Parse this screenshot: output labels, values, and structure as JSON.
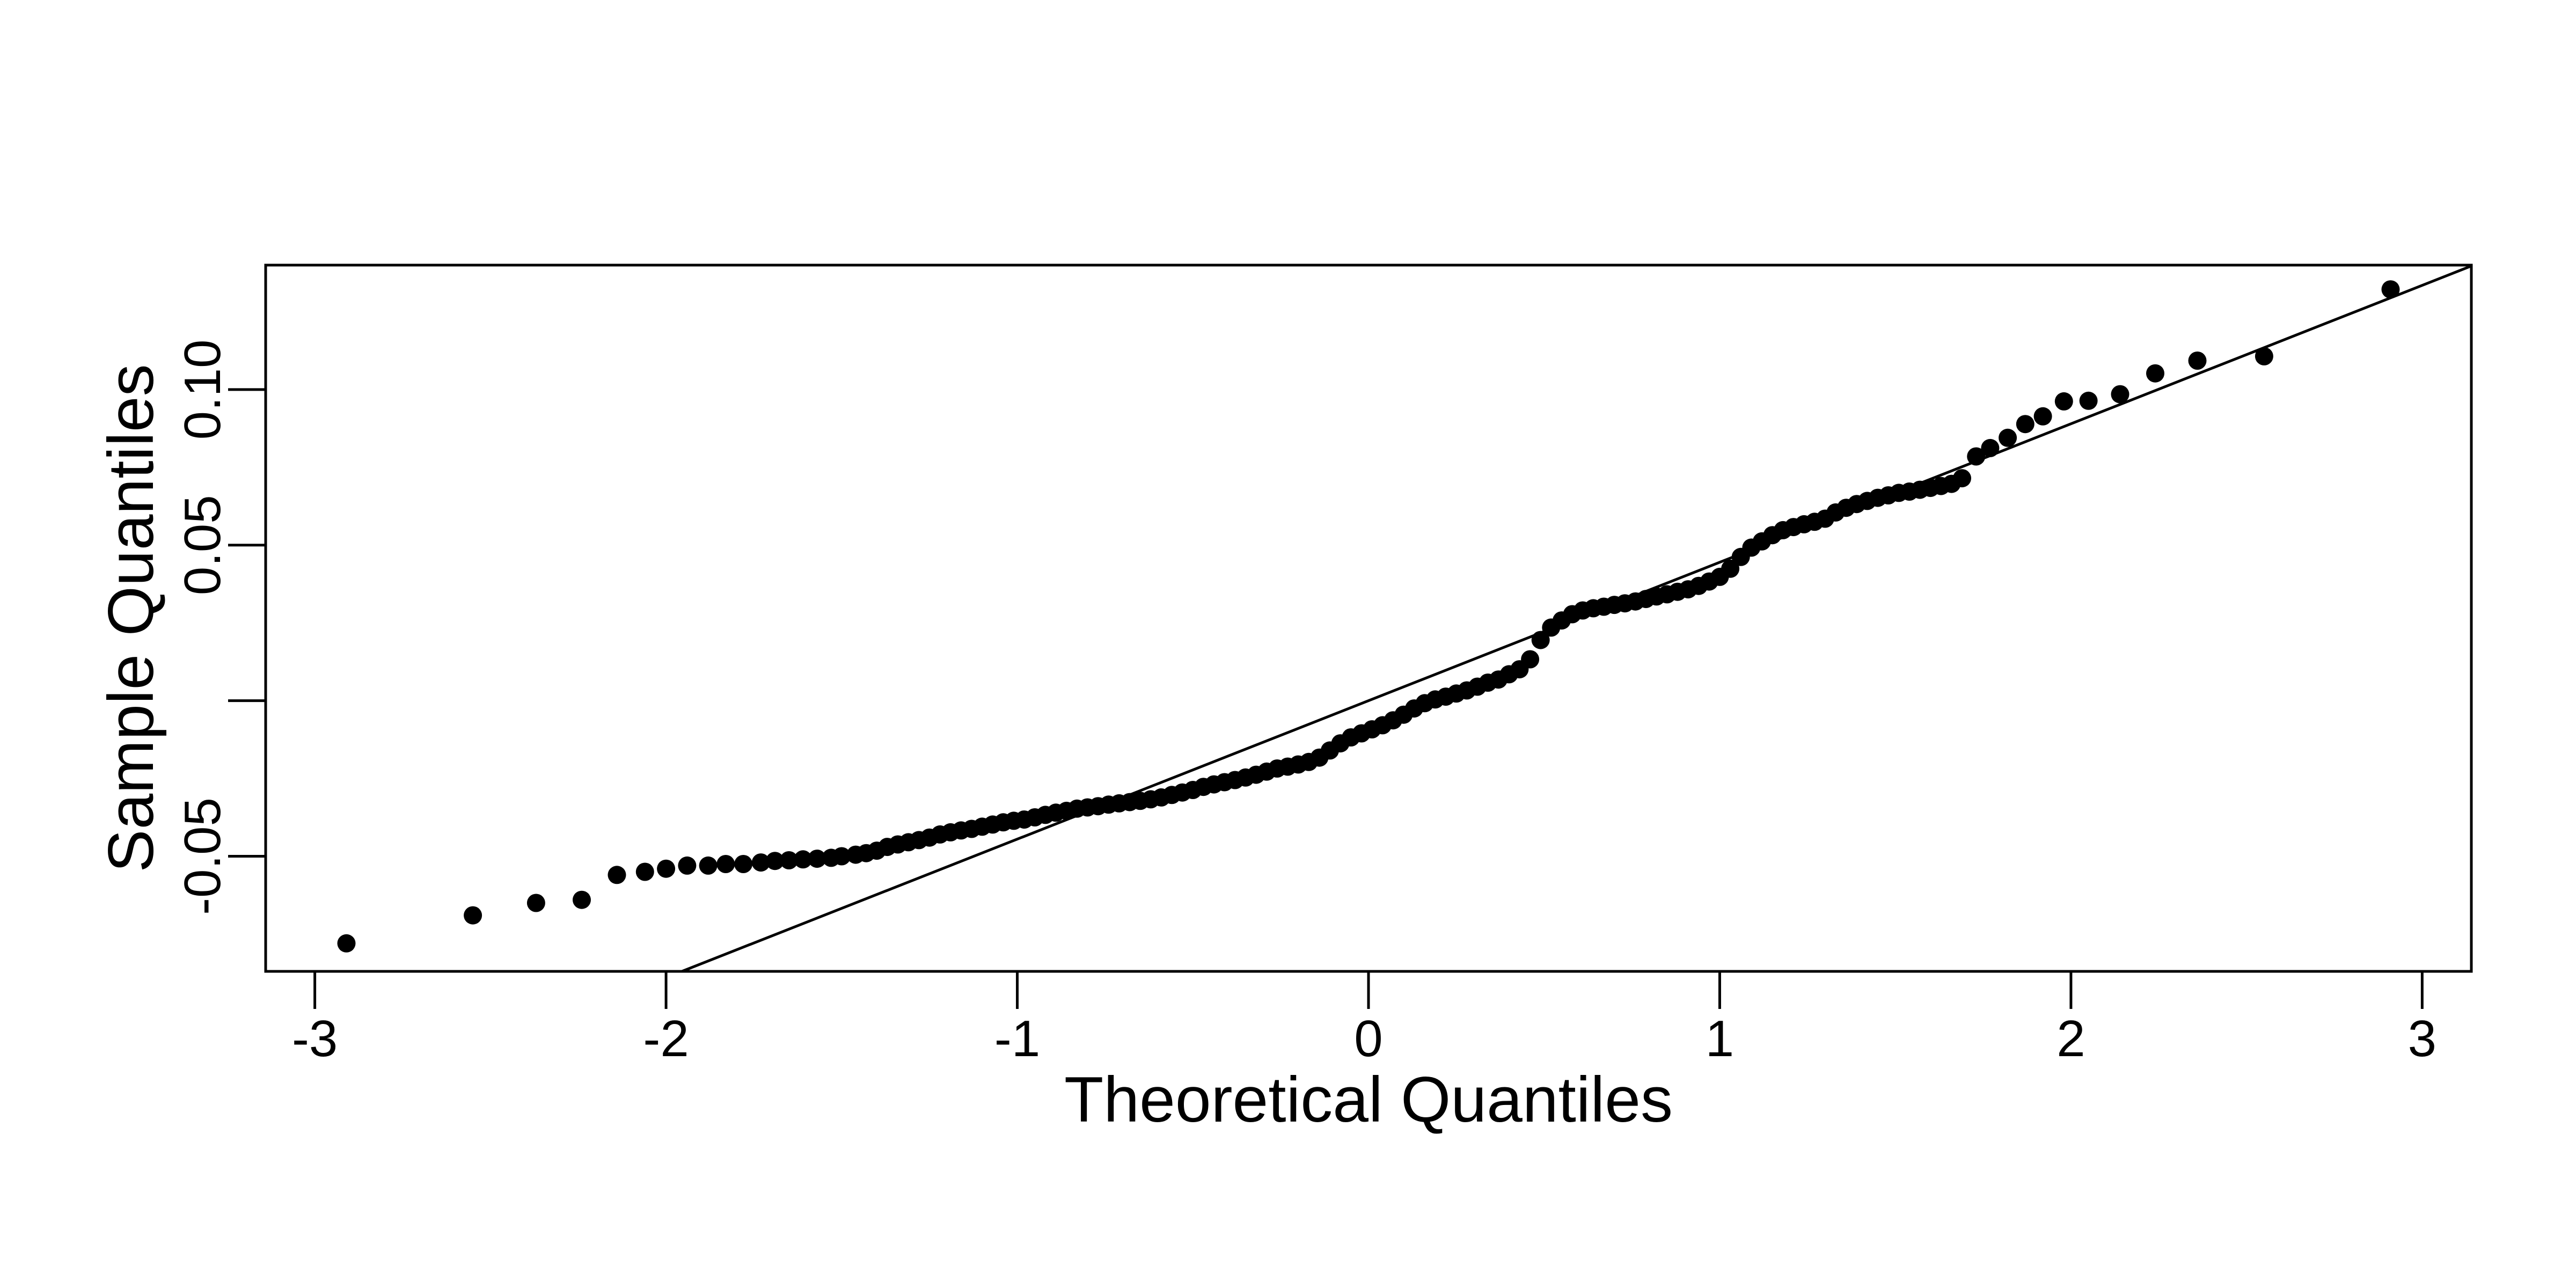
{
  "chart_data": {
    "type": "scatter",
    "title": "",
    "xlabel": "Theoretical Quantiles",
    "ylabel": "Sample Quantiles",
    "xlim": [
      -3.14,
      3.14
    ],
    "ylim": [
      -0.087,
      0.14
    ],
    "xticks": [
      -3,
      -2,
      -1,
      0,
      1,
      2,
      3
    ],
    "xtick_labels": [
      "-3",
      "-2",
      "-1",
      "0",
      "1",
      "2",
      "3"
    ],
    "yticks": [
      -0.05,
      0,
      0.05,
      0.1
    ],
    "ytick_labels": [
      "-0.05",
      "",
      "0.05",
      "0.10"
    ],
    "grid": false,
    "marker_color": "#000000",
    "reference_line": {
      "intercept": 0.0,
      "slope": 0.0445
    },
    "points": [
      [
        -2.91,
        -0.078
      ],
      [
        -2.55,
        -0.069
      ],
      [
        -2.37,
        -0.065
      ],
      [
        -2.24,
        -0.064
      ],
      [
        -2.14,
        -0.056
      ],
      [
        -2.06,
        -0.055
      ],
      [
        -2.0,
        -0.054
      ],
      [
        -1.94,
        -0.053
      ],
      [
        -1.88,
        -0.053
      ],
      [
        -1.83,
        -0.0525
      ],
      [
        -1.78,
        -0.0525
      ],
      [
        -1.73,
        -0.052
      ],
      [
        -1.69,
        -0.0515
      ],
      [
        -1.65,
        -0.0513
      ],
      [
        -1.61,
        -0.051
      ],
      [
        -1.57,
        -0.0508
      ],
      [
        -1.53,
        -0.0505
      ],
      [
        -1.5,
        -0.05
      ],
      [
        -1.46,
        -0.0495
      ],
      [
        -1.43,
        -0.049
      ],
      [
        -1.4,
        -0.0482
      ],
      [
        -1.37,
        -0.047
      ],
      [
        -1.34,
        -0.0462
      ],
      [
        -1.31,
        -0.0455
      ],
      [
        -1.28,
        -0.0448
      ],
      [
        -1.25,
        -0.044
      ],
      [
        -1.22,
        -0.043
      ],
      [
        -1.19,
        -0.0423
      ],
      [
        -1.16,
        -0.0417
      ],
      [
        -1.13,
        -0.0412
      ],
      [
        -1.1,
        -0.0405
      ],
      [
        -1.07,
        -0.0398
      ],
      [
        -1.04,
        -0.0391
      ],
      [
        -1.01,
        -0.0386
      ],
      [
        -0.98,
        -0.0382
      ],
      [
        -0.95,
        -0.0375
      ],
      [
        -0.92,
        -0.0367
      ],
      [
        -0.89,
        -0.036
      ],
      [
        -0.86,
        -0.0354
      ],
      [
        -0.83,
        -0.0347
      ],
      [
        -0.8,
        -0.0343
      ],
      [
        -0.77,
        -0.0339
      ],
      [
        -0.74,
        -0.0334
      ],
      [
        -0.71,
        -0.033
      ],
      [
        -0.68,
        -0.0326
      ],
      [
        -0.65,
        -0.0322
      ],
      [
        -0.62,
        -0.0317
      ],
      [
        -0.59,
        -0.0311
      ],
      [
        -0.56,
        -0.0303
      ],
      [
        -0.53,
        -0.0295
      ],
      [
        -0.5,
        -0.0287
      ],
      [
        -0.47,
        -0.0277
      ],
      [
        -0.44,
        -0.0269
      ],
      [
        -0.41,
        -0.0262
      ],
      [
        -0.38,
        -0.0255
      ],
      [
        -0.35,
        -0.0247
      ],
      [
        -0.32,
        -0.0238
      ],
      [
        -0.29,
        -0.0228
      ],
      [
        -0.26,
        -0.0218
      ],
      [
        -0.23,
        -0.0212
      ],
      [
        -0.2,
        -0.0205
      ],
      [
        -0.17,
        -0.0197
      ],
      [
        -0.14,
        -0.0183
      ],
      [
        -0.11,
        -0.016
      ],
      [
        -0.08,
        -0.0137
      ],
      [
        -0.05,
        -0.0118
      ],
      [
        -0.02,
        -0.0105
      ],
      [
        0.01,
        -0.0092
      ],
      [
        0.04,
        -0.0079
      ],
      [
        0.07,
        -0.0063
      ],
      [
        0.1,
        -0.0045
      ],
      [
        0.13,
        -0.0025
      ],
      [
        0.16,
        -0.0008
      ],
      [
        0.19,
        0.0004
      ],
      [
        0.22,
        0.0013
      ],
      [
        0.25,
        0.0023
      ],
      [
        0.28,
        0.0033
      ],
      [
        0.31,
        0.0045
      ],
      [
        0.34,
        0.0058
      ],
      [
        0.37,
        0.0068
      ],
      [
        0.4,
        0.0085
      ],
      [
        0.43,
        0.0101
      ],
      [
        0.46,
        0.0133
      ],
      [
        0.49,
        0.0195
      ],
      [
        0.52,
        0.0235
      ],
      [
        0.55,
        0.0258
      ],
      [
        0.58,
        0.0278
      ],
      [
        0.61,
        0.029
      ],
      [
        0.64,
        0.0297
      ],
      [
        0.67,
        0.0302
      ],
      [
        0.7,
        0.0308
      ],
      [
        0.73,
        0.0313
      ],
      [
        0.76,
        0.0319
      ],
      [
        0.79,
        0.0327
      ],
      [
        0.82,
        0.0335
      ],
      [
        0.85,
        0.0342
      ],
      [
        0.88,
        0.035
      ],
      [
        0.91,
        0.0358
      ],
      [
        0.94,
        0.0369
      ],
      [
        0.97,
        0.0383
      ],
      [
        1.0,
        0.0398
      ],
      [
        1.03,
        0.0424
      ],
      [
        1.06,
        0.0462
      ],
      [
        1.09,
        0.0492
      ],
      [
        1.12,
        0.0512
      ],
      [
        1.15,
        0.0532
      ],
      [
        1.18,
        0.0548
      ],
      [
        1.21,
        0.0558
      ],
      [
        1.24,
        0.0567
      ],
      [
        1.27,
        0.0575
      ],
      [
        1.3,
        0.0585
      ],
      [
        1.33,
        0.0605
      ],
      [
        1.36,
        0.062
      ],
      [
        1.39,
        0.0632
      ],
      [
        1.42,
        0.0642
      ],
      [
        1.45,
        0.0652
      ],
      [
        1.48,
        0.066
      ],
      [
        1.51,
        0.0668
      ],
      [
        1.54,
        0.0672
      ],
      [
        1.57,
        0.0678
      ],
      [
        1.6,
        0.0684
      ],
      [
        1.63,
        0.069
      ],
      [
        1.66,
        0.0697
      ],
      [
        1.69,
        0.0715
      ],
      [
        1.73,
        0.0785
      ],
      [
        1.77,
        0.0812
      ],
      [
        1.82,
        0.0845
      ],
      [
        1.87,
        0.0889
      ],
      [
        1.92,
        0.0914
      ],
      [
        1.98,
        0.0962
      ],
      [
        2.05,
        0.0964
      ],
      [
        2.14,
        0.0985
      ],
      [
        2.24,
        0.1052
      ],
      [
        2.36,
        0.1093
      ],
      [
        2.55,
        0.1107
      ],
      [
        2.91,
        0.1322
      ]
    ]
  }
}
